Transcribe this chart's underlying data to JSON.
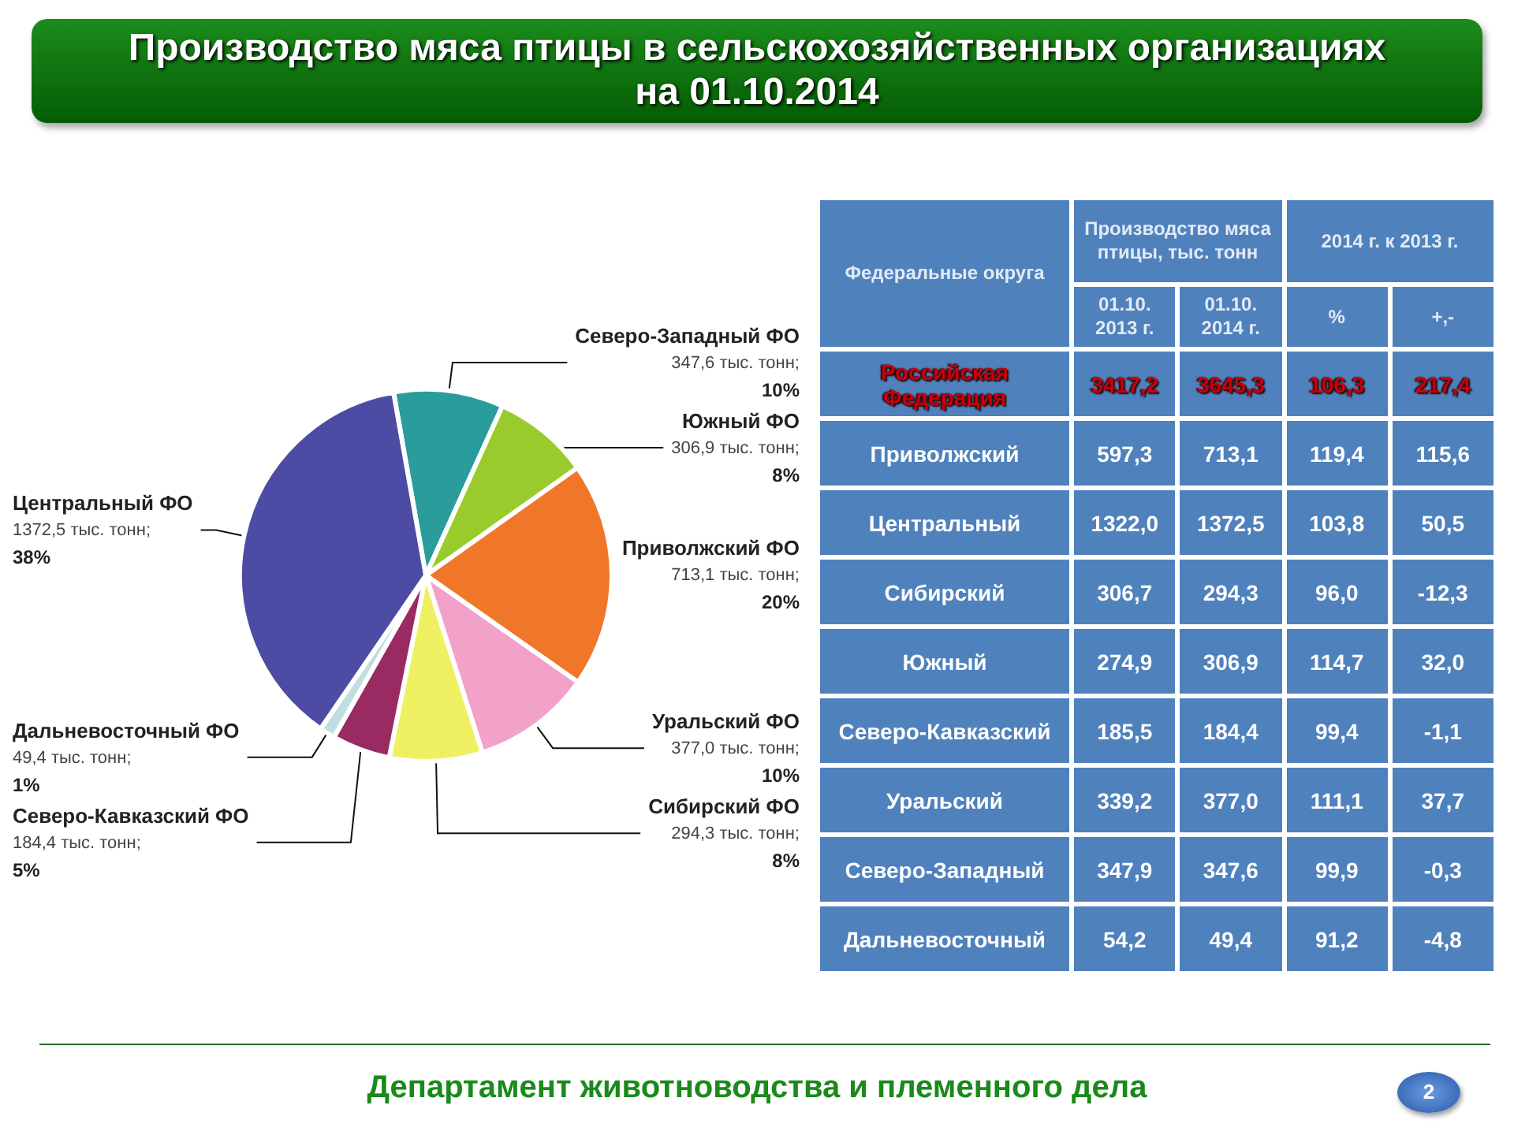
{
  "chart_data": [
    {
      "type": "pie",
      "title": "Производство мяса птицы в сельскохозяйственных организациях\nна 01.10.2014",
      "categories": [
        "Северо-Западный ФО",
        "Южный ФО",
        "Приволжский ФО",
        "Уральский ФО",
        "Сибирский ФО",
        "Северо-Кавказский ФО",
        "Дальневосточный ФО",
        "Центральный ФО"
      ],
      "values": [
        347.6,
        306.9,
        713.1,
        377.0,
        294.3,
        184.4,
        49.4,
        1372.5
      ],
      "value_labels": [
        "347,6 тыс. тонн;\n10%",
        "306,9 тыс. тонн;\n8%",
        "713,1 тыс. тонн;\n20%",
        "377,0 тыс. тонн;\n10%",
        "294,3 тыс. тонн;\n8%",
        "184,4 тыс. тонн;\n5%",
        "49,4 тыс. тонн;\n1%",
        "1372,5 тыс. тонн;\n38%"
      ],
      "colors": [
        "#2a9c9c",
        "#9acb2c",
        "#f0762a",
        "#f2a2c8",
        "#eef062",
        "#9a2a62",
        "#c2dde2",
        "#4c4ca4"
      ],
      "annotations": [
        "Департамент животноводства и племенного дела",
        "2"
      ]
    },
    {
      "type": "other",
      "ylabel": "Федеральные округа",
      "annotations": [
        "Производство мяса птицы, тыс. тонн",
        "2014 г. к 2013 г."
      ],
      "categories": [
        "Российская Федерация",
        "Приволжский",
        "Центральный",
        "Сибирский",
        "Южный",
        "Северо-Кавказский",
        "Уральский",
        "Северо-Западный",
        "Дальневосточный"
      ],
      "series": [
        {
          "name": "01.10. 2013 г.",
          "values": [
            3417.2,
            597.3,
            1322.0,
            306.7,
            274.9,
            185.5,
            339.2,
            347.9,
            54.2
          ],
          "value_labels": [
            "3417,2",
            "597,3",
            "1322,0",
            "306,7",
            "274,9",
            "185,5",
            "339,2",
            "347,9",
            "54,2"
          ]
        },
        {
          "name": "01.10. 2014 г.",
          "values": [
            3645.3,
            713.1,
            1372.5,
            294.3,
            306.9,
            184.4,
            377.0,
            347.6,
            49.4
          ],
          "value_labels": [
            "3645,3",
            "713,1",
            "1372,5",
            "294,3",
            "306,9",
            "184,4",
            "377,0",
            "347,6",
            "49,4"
          ]
        },
        {
          "name": "%",
          "values": [
            106.3,
            119.4,
            103.8,
            96.0,
            114.7,
            99.4,
            111.1,
            99.9,
            91.2
          ],
          "value_labels": [
            "106,3",
            "119,4",
            "103,8",
            "96,0",
            "114,7",
            "99,4",
            "111,1",
            "99,9",
            "91,2"
          ]
        },
        {
          "name": "+,-",
          "values": [
            217.4,
            115.6,
            50.5,
            -12.3,
            32.0,
            -1.1,
            37.7,
            -0.3,
            -4.8
          ],
          "value_labels": [
            "217,4",
            "115,6",
            "50,5",
            "-12,3",
            "32,0",
            "-1,1",
            "37,7",
            "-0,3",
            "-4,8"
          ]
        }
      ]
    }
  ]
}
